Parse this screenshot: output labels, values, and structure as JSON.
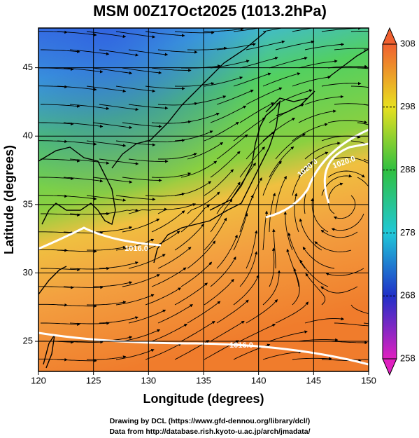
{
  "title": "MSM 00Z17Oct2025 (1013.2hPa)",
  "x_axis": {
    "label": "Longitude (degrees)",
    "lim": [
      120,
      150
    ],
    "ticks": [
      120,
      125,
      130,
      135,
      140,
      145,
      150
    ]
  },
  "y_axis": {
    "label": "Latitude  (degrees)",
    "lim": [
      22.8,
      47.9
    ],
    "ticks": [
      25,
      30,
      35,
      40,
      45
    ]
  },
  "colorbar": {
    "lim": [
      258,
      308
    ],
    "ticks": [
      258,
      268,
      278,
      288,
      298,
      308
    ]
  },
  "contour_labels": [
    "1020.0",
    "1020.0",
    "1016.0",
    "1016.0"
  ],
  "credits": [
    "Drawing by DCL (https://www.gfd-dennou.org/library/dcl/)",
    "Data from http://database.rish.kyoto-u.ac.jp/arch/jmadata/"
  ]
}
